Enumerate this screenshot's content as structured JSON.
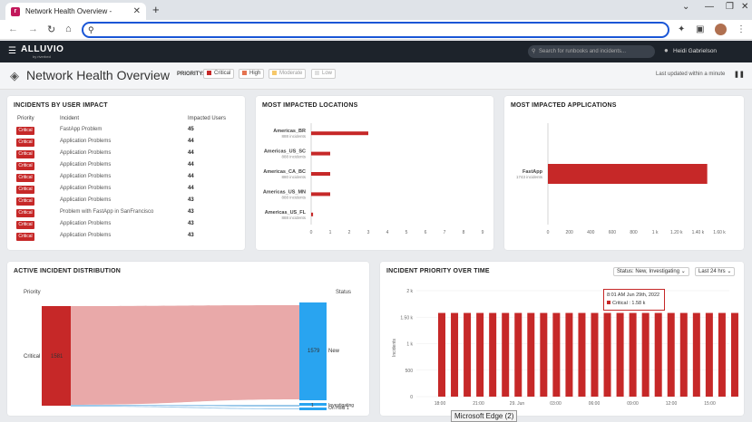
{
  "browser": {
    "tab_title": "Network Health Overview -",
    "tab_favicon": "r",
    "omnibox_value": "",
    "edge_tooltip": "Microsoft Edge (2)"
  },
  "app": {
    "logo": "ALLUVIO",
    "logo_sub": "by riverbed",
    "search_placeholder": "Search for runbooks and incidents...",
    "user_name": "Heidi Gabrielson"
  },
  "page": {
    "title": "Network Health Overview",
    "priority_label": "PRIORITY:",
    "chips": [
      {
        "label": "Critical",
        "color": "#c62828"
      },
      {
        "label": "High",
        "color": "#e57350"
      },
      {
        "label": "Moderate",
        "color": "#f6c86a"
      },
      {
        "label": "Low",
        "color": "#e0e0e0"
      }
    ],
    "last_updated": "Last updated within a minute"
  },
  "impact": {
    "title": "INCIDENTS BY USER IMPACT",
    "headers": {
      "priority": "Priority",
      "incident": "Incident",
      "users": "Impacted Users"
    },
    "rows": [
      {
        "priority": "Critical",
        "incident": "FastApp Problem",
        "users": "45"
      },
      {
        "priority": "Critical",
        "incident": "Application Problems",
        "users": "44"
      },
      {
        "priority": "Critical",
        "incident": "Application Problems",
        "users": "44"
      },
      {
        "priority": "Critical",
        "incident": "Application Problems",
        "users": "44"
      },
      {
        "priority": "Critical",
        "incident": "Application Problems",
        "users": "44"
      },
      {
        "priority": "Critical",
        "incident": "Application Problems",
        "users": "44"
      },
      {
        "priority": "Critical",
        "incident": "Application Problems",
        "users": "43"
      },
      {
        "priority": "Critical",
        "incident": "Problem with FastApp in SanFrancisco",
        "users": "43"
      },
      {
        "priority": "Critical",
        "incident": "Application Problems",
        "users": "43"
      },
      {
        "priority": "Critical",
        "incident": "Application Problems",
        "users": "43"
      }
    ]
  },
  "locations": {
    "title": "MOST IMPACTED LOCATIONS"
  },
  "applications": {
    "title": "MOST IMPACTED APPLICATIONS"
  },
  "distribution": {
    "title": "ACTIVE INCIDENT DISTRIBUTION",
    "left_label": "Priority",
    "right_label": "Status",
    "source": "Critical",
    "source_value": "1581",
    "targets": [
      {
        "name": "New",
        "value": "1579"
      },
      {
        "name": "Investigating",
        "value": "1"
      },
      {
        "name": "On Hold",
        "value": "1"
      }
    ]
  },
  "over_time": {
    "title": "INCIDENT PRIORITY OVER TIME",
    "status_filter": "Status: New, Investigating",
    "range_filter": "Last 24 hrs",
    "tooltip_time": "8:01 AM Jun 29th, 2022",
    "tooltip_value": "Critical : 1.58 k"
  },
  "chart_data": [
    {
      "type": "bar",
      "orientation": "horizontal",
      "title": "MOST IMPACTED LOCATIONS",
      "categories": [
        "Americas_BR",
        "Americas_US_SC",
        "Americas_CA_BC",
        "Americas_US_MN",
        "Americas_US_FL"
      ],
      "category_sublabels": [
        "888 incidents",
        "888 incidents",
        "880 incidents",
        "888 incidents",
        "888 incidents"
      ],
      "values": [
        3,
        1,
        1,
        1,
        0.1
      ],
      "xlim": [
        0,
        9
      ],
      "xticks": [
        "0",
        "1",
        "2",
        "3",
        "4",
        "5",
        "6",
        "7",
        "8",
        "9"
      ],
      "color": "#c62828"
    },
    {
      "type": "bar",
      "orientation": "horizontal",
      "title": "MOST IMPACTED APPLICATIONS",
      "categories": [
        "FastApp"
      ],
      "category_sublabels": [
        "1743 incidents"
      ],
      "values": [
        1580
      ],
      "xlim": [
        0,
        1700
      ],
      "xticks": [
        "0",
        "200",
        "400",
        "600",
        "800",
        "1 k",
        "1.20 k",
        "1.40 k",
        "1.60 k"
      ],
      "color": "#c62828"
    },
    {
      "type": "bar",
      "title": "INCIDENT PRIORITY OVER TIME",
      "ylabel": "Incidents",
      "ylim": [
        0,
        2000
      ],
      "yticks": [
        "0",
        "500",
        "1 k",
        "1.50 k",
        "2 k"
      ],
      "xticks": [
        "18:00",
        "21:00",
        "29. Jun",
        "03:00",
        "06:00",
        "09:00",
        "12:00",
        "15:00"
      ],
      "series": [
        {
          "name": "Critical",
          "values": [
            1580,
            1580,
            1580,
            1580,
            1580,
            1580,
            1580,
            1580,
            1580,
            1580,
            1580,
            1580,
            1580,
            1580,
            1580,
            1580,
            1580,
            1580,
            1580,
            1580,
            1580,
            1580,
            1580,
            1580
          ]
        }
      ],
      "color": "#c62828"
    }
  ]
}
